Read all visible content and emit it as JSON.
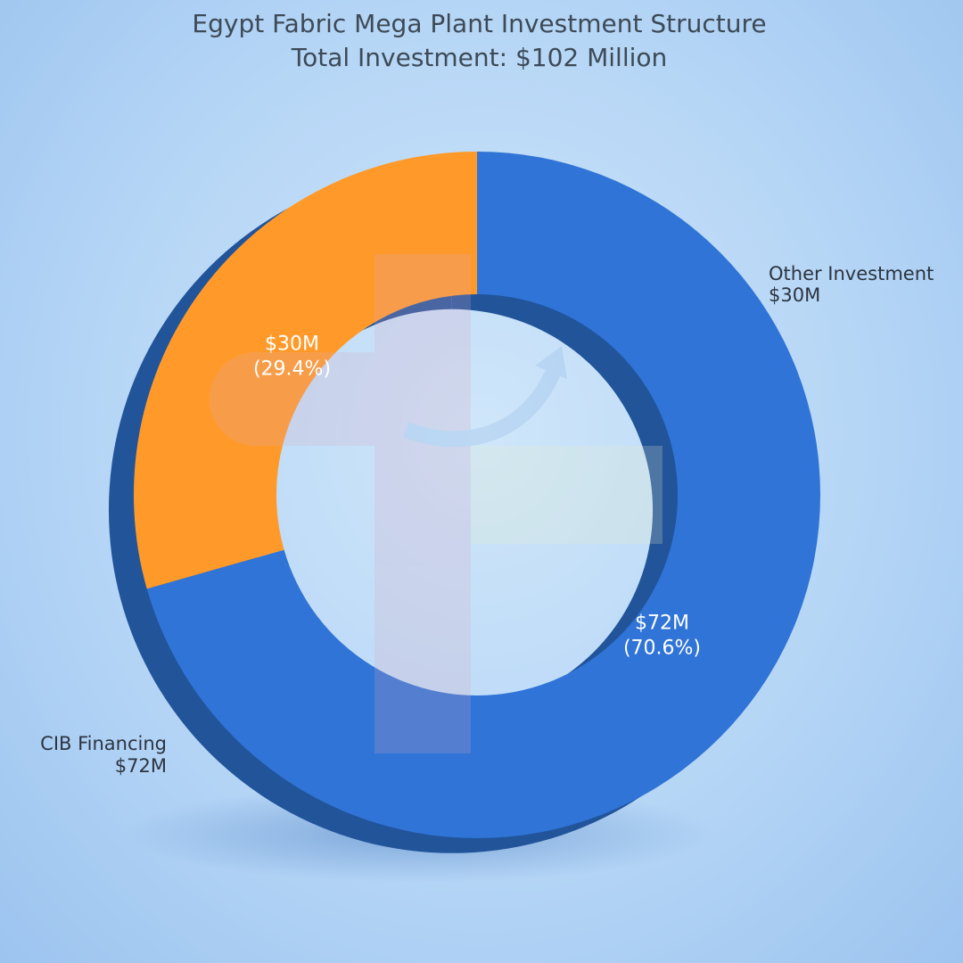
{
  "chart_data": {
    "type": "pie",
    "title": "Egypt Fabric Mega Plant Investment Structure",
    "subtitle": "Total Investment: $102 Million",
    "donut": true,
    "series": [
      {
        "name": "CIB Financing",
        "value": 72,
        "outer_label": "$72M",
        "value_label": "$72M",
        "percent_label": "(70.6%)",
        "color": "#2f74d6"
      },
      {
        "name": "Other Investment",
        "value": 30,
        "outer_label": "$30M",
        "value_label": "$30M",
        "percent_label": "(29.4%)",
        "color": "#ff9a2a"
      }
    ]
  }
}
